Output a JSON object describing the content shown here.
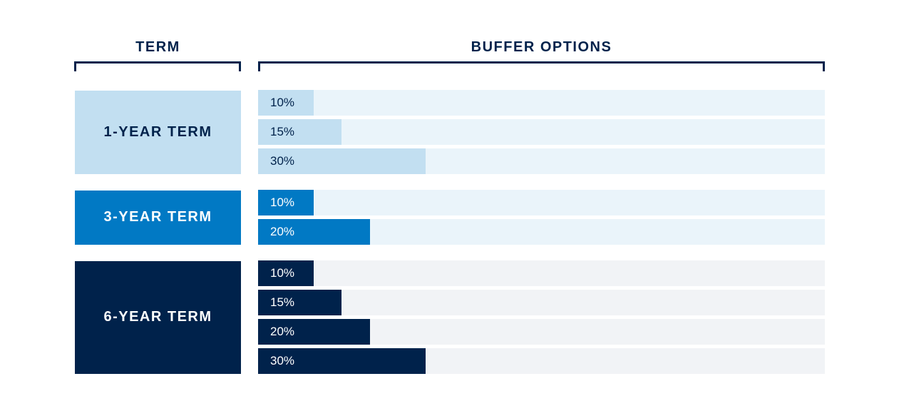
{
  "header": {
    "term_label": "TERM",
    "buffer_label": "BUFFER OPTIONS"
  },
  "colors": {
    "navy": "#00224b",
    "term_1_year": "#c2dff1",
    "term_3_year": "#0179c4",
    "term_6_year": "#00224b",
    "track_1_year": "#eaf4fa",
    "track_3_year": "#eaf4fa",
    "track_6_year": "#f1f3f6"
  },
  "chart_data": {
    "type": "bar",
    "xlim": [
      0,
      100
    ],
    "groups": [
      {
        "label": "1-YEAR TERM",
        "key": "1_year",
        "values": [
          10,
          15,
          30
        ],
        "labels": [
          "10%",
          "15%",
          "30%"
        ]
      },
      {
        "label": "3-YEAR TERM",
        "key": "3_year",
        "values": [
          10,
          20
        ],
        "labels": [
          "10%",
          "20%"
        ]
      },
      {
        "label": "6-YEAR TERM",
        "key": "6_year",
        "values": [
          10,
          15,
          20,
          30
        ],
        "labels": [
          "10%",
          "15%",
          "20%",
          "30%"
        ]
      }
    ]
  }
}
